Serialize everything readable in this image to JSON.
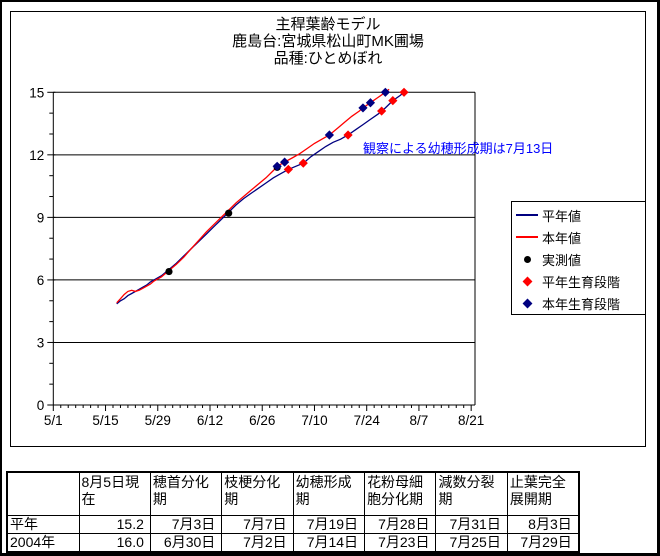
{
  "chart_data": {
    "type": "line",
    "title": "主稈葉齢モデル",
    "subtitle_lines": [
      "鹿島台:宮城県松山町MK圃場",
      "品種:ひとめぼれ"
    ],
    "x_axis": {
      "start_date": "5/1",
      "tick_labels": [
        "5/1",
        "5/15",
        "5/29",
        "6/12",
        "6/26",
        "7/10",
        "7/24",
        "8/7",
        "8/21"
      ],
      "tick_days": [
        0,
        14,
        28,
        42,
        56,
        70,
        84,
        98,
        112
      ],
      "minor_tick_interval_days": 2,
      "range_days": [
        0,
        113
      ]
    },
    "y_axis": {
      "ticks": [
        0,
        3,
        6,
        9,
        12,
        15
      ],
      "minor_tick_interval": 1,
      "range": [
        0,
        15
      ],
      "gridlines_at": [
        3,
        6,
        9,
        12,
        15
      ]
    },
    "legend": {
      "position": "middle-right"
    },
    "annotation": {
      "text": "観察による幼穂形成期は7月13日",
      "color": "#0000ff"
    },
    "x_unit_note": "day = days after 5/1",
    "series": [
      {
        "id": "normal-line",
        "name": "平年値",
        "kind": "line",
        "color": "#000080",
        "points": [
          [
            17,
            4.85
          ],
          [
            18,
            5.0
          ],
          [
            19,
            5.1
          ],
          [
            20,
            5.25
          ],
          [
            21,
            5.35
          ],
          [
            22,
            5.45
          ],
          [
            23,
            5.55
          ],
          [
            24,
            5.65
          ],
          [
            25,
            5.75
          ],
          [
            26,
            5.9
          ],
          [
            27,
            6.0
          ],
          [
            29,
            6.2
          ],
          [
            31,
            6.5
          ],
          [
            33,
            6.8
          ],
          [
            35,
            7.15
          ],
          [
            37,
            7.5
          ],
          [
            39,
            7.85
          ],
          [
            41,
            8.2
          ],
          [
            43,
            8.55
          ],
          [
            45,
            8.9
          ],
          [
            47,
            9.25
          ],
          [
            49,
            9.6
          ],
          [
            51,
            9.9
          ],
          [
            53,
            10.15
          ],
          [
            55,
            10.4
          ],
          [
            57,
            10.65
          ],
          [
            59,
            10.9
          ],
          [
            61,
            11.1
          ],
          [
            63,
            11.3
          ],
          [
            65,
            11.45
          ],
          [
            67,
            11.6
          ],
          [
            69,
            11.9
          ],
          [
            71,
            12.15
          ],
          [
            73,
            12.4
          ],
          [
            75,
            12.6
          ],
          [
            77,
            12.75
          ],
          [
            79,
            12.95
          ],
          [
            81,
            13.2
          ],
          [
            83,
            13.45
          ],
          [
            85,
            13.7
          ],
          [
            87,
            13.95
          ],
          [
            89,
            14.25
          ],
          [
            91,
            14.6
          ],
          [
            93,
            14.85
          ],
          [
            94,
            15.0
          ]
        ]
      },
      {
        "id": "current-line",
        "name": "本年値",
        "kind": "line",
        "color": "#ff0000",
        "points": [
          [
            17,
            4.9
          ],
          [
            18,
            5.1
          ],
          [
            19,
            5.3
          ],
          [
            20,
            5.45
          ],
          [
            21,
            5.5
          ],
          [
            22,
            5.45
          ],
          [
            23,
            5.5
          ],
          [
            24,
            5.6
          ],
          [
            25,
            5.7
          ],
          [
            26,
            5.8
          ],
          [
            27,
            5.95
          ],
          [
            29,
            6.15
          ],
          [
            31,
            6.45
          ],
          [
            33,
            6.75
          ],
          [
            35,
            7.1
          ],
          [
            37,
            7.5
          ],
          [
            39,
            7.9
          ],
          [
            41,
            8.3
          ],
          [
            43,
            8.65
          ],
          [
            45,
            9.0
          ],
          [
            47,
            9.35
          ],
          [
            49,
            9.7
          ],
          [
            51,
            10.0
          ],
          [
            53,
            10.3
          ],
          [
            55,
            10.6
          ],
          [
            57,
            10.9
          ],
          [
            59,
            11.25
          ],
          [
            60,
            11.45
          ],
          [
            62,
            11.65
          ],
          [
            64,
            11.85
          ],
          [
            66,
            12.05
          ],
          [
            68,
            12.3
          ],
          [
            70,
            12.55
          ],
          [
            72,
            12.75
          ],
          [
            74,
            12.95
          ],
          [
            76,
            13.25
          ],
          [
            78,
            13.55
          ],
          [
            80,
            13.85
          ],
          [
            82,
            14.1
          ],
          [
            83,
            14.25
          ],
          [
            85,
            14.5
          ],
          [
            87,
            14.75
          ],
          [
            89,
            15.0
          ],
          [
            90,
            15.15
          ]
        ]
      },
      {
        "id": "measured",
        "name": "実測値",
        "kind": "scatter",
        "marker": "circle",
        "color": "#000000",
        "points": [
          {
            "date": "6/1",
            "day": 31,
            "value": 6.4
          },
          {
            "date": "6/17",
            "day": 47,
            "value": 9.2
          },
          {
            "date": "6/30",
            "day": 60,
            "value": 11.4
          }
        ]
      },
      {
        "id": "normal-stages",
        "name": "平年生育段階",
        "kind": "scatter",
        "marker": "diamond",
        "color": "#ff0000",
        "points": [
          {
            "date": "7/3",
            "day": 63,
            "value": 11.3
          },
          {
            "date": "7/7",
            "day": 67,
            "value": 11.6
          },
          {
            "date": "7/19",
            "day": 79,
            "value": 12.95
          },
          {
            "date": "7/28",
            "day": 88,
            "value": 14.1
          },
          {
            "date": "7/31",
            "day": 91,
            "value": 14.6
          },
          {
            "date": "8/3",
            "day": 94,
            "value": 15.0
          }
        ]
      },
      {
        "id": "current-stages",
        "name": "本年生育段階",
        "kind": "scatter",
        "marker": "diamond",
        "color": "#000080",
        "points": [
          {
            "date": "6/30",
            "day": 60,
            "value": 11.45
          },
          {
            "date": "7/2",
            "day": 62,
            "value": 11.65
          },
          {
            "date": "7/14",
            "day": 74,
            "value": 12.95
          },
          {
            "date": "7/23",
            "day": 83,
            "value": 14.25
          },
          {
            "date": "7/25",
            "day": 85,
            "value": 14.5
          },
          {
            "date": "7/29",
            "day": 89,
            "value": 15.0
          }
        ]
      }
    ]
  },
  "table": {
    "headers": [
      "",
      "8月5日現在",
      "穂首分化期",
      "枝梗分化期",
      "幼穂形成期",
      "花粉母細胞分化期",
      "減数分裂期",
      "止葉完全展開期"
    ],
    "rows": [
      {
        "label": "平年",
        "values": [
          "15.2",
          "7月3日",
          "7月7日",
          "7月19日",
          "7月28日",
          "7月31日",
          "8月3日"
        ]
      },
      {
        "label": "2004年",
        "values": [
          "16.0",
          "6月30日",
          "7月2日",
          "7月14日",
          "7月23日",
          "7月25日",
          "7月29日"
        ]
      }
    ]
  }
}
